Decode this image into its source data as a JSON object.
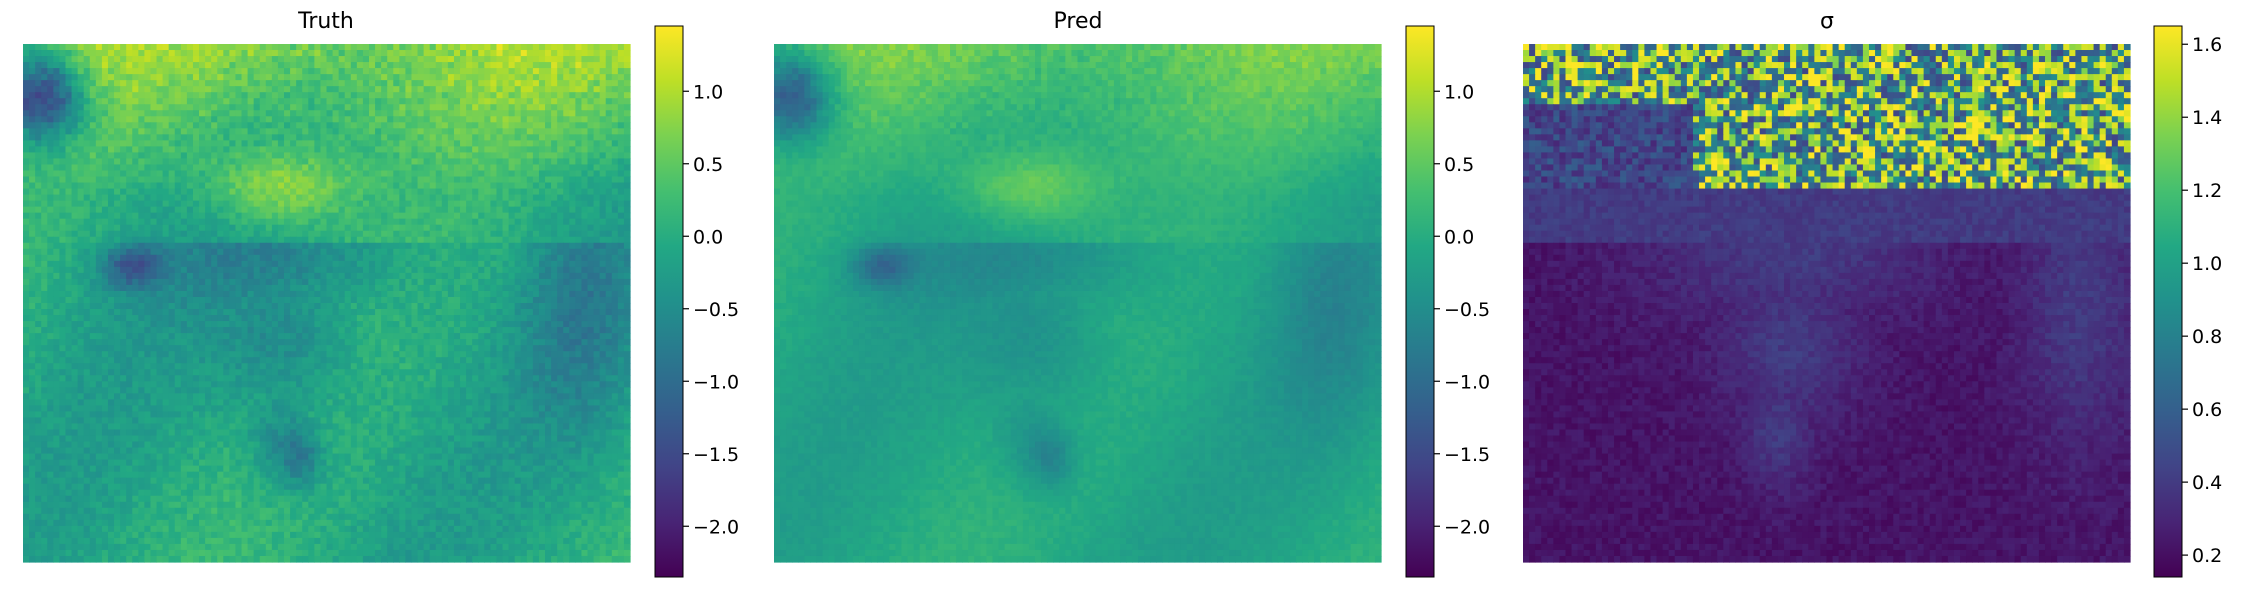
{
  "chart_data": [
    {
      "type": "heatmap",
      "title": "Truth",
      "colormap": "viridis",
      "colorbar": {
        "range": [
          -2.35,
          1.45
        ],
        "ticks": [
          1.0,
          0.5,
          0.0,
          -0.5,
          -1.0,
          -1.5,
          -2.0
        ],
        "tick_labels": [
          "1.0",
          "0.5",
          "0.0",
          "−0.5",
          "−1.0",
          "−1.5",
          "−2.0"
        ]
      },
      "axes_visible": false
    },
    {
      "type": "heatmap",
      "title": "Pred",
      "colormap": "viridis",
      "colorbar": {
        "range": [
          -2.35,
          1.45
        ],
        "ticks": [
          1.0,
          0.5,
          0.0,
          -0.5,
          -1.0,
          -1.5,
          -2.0
        ],
        "tick_labels": [
          "1.0",
          "0.5",
          "0.0",
          "−0.5",
          "−1.0",
          "−1.5",
          "−2.0"
        ]
      },
      "axes_visible": false
    },
    {
      "type": "heatmap",
      "title": "σ",
      "colormap": "viridis",
      "colorbar": {
        "range": [
          0.14,
          1.65
        ],
        "ticks": [
          1.6,
          1.4,
          1.2,
          1.0,
          0.8,
          0.6,
          0.4,
          0.2
        ],
        "tick_labels": [
          "1.6",
          "1.4",
          "1.2",
          "1.0",
          "0.8",
          "0.6",
          "0.4",
          "0.2"
        ]
      },
      "axes_visible": false
    }
  ]
}
